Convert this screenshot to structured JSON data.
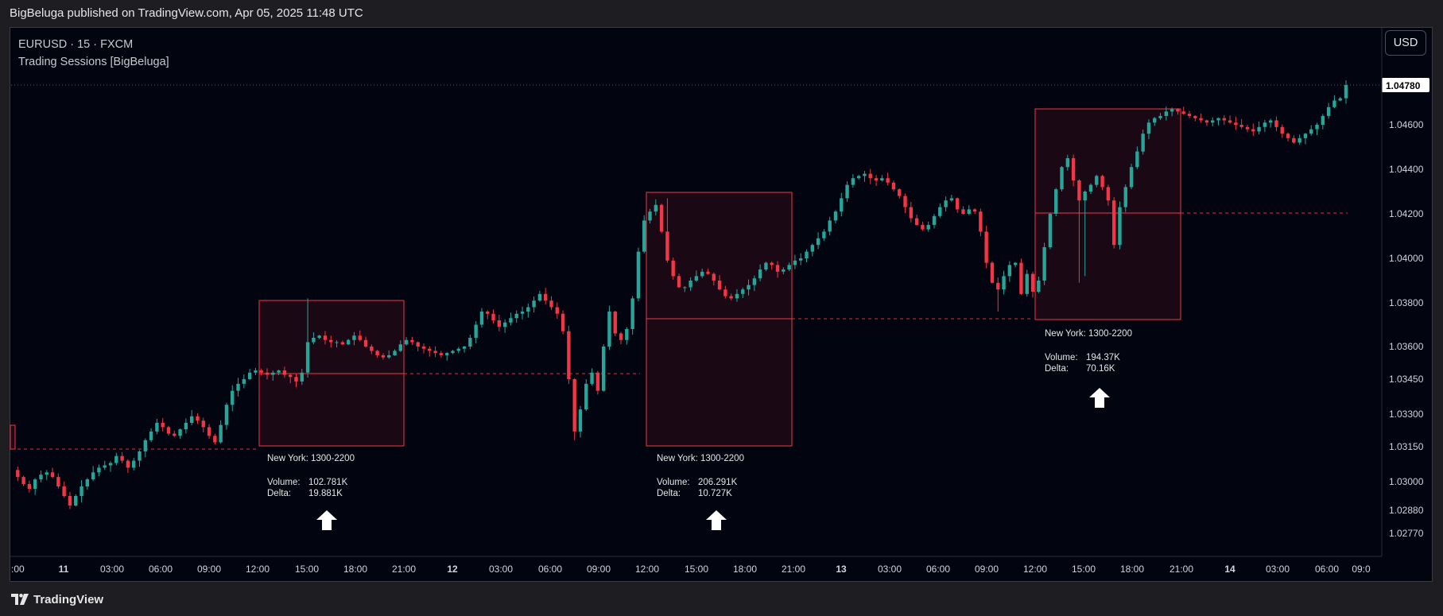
{
  "header": {
    "published": "BigBeluga published on TradingView.com, Apr 05, 2025 11:48 UTC"
  },
  "legend": {
    "symbol_line": "EURUSD · 15 · FXCM",
    "indicator": "Trading Sessions [BigBeluga]"
  },
  "currency_button": "USD",
  "footer": {
    "brand": "TradingView"
  },
  "colors": {
    "background": "#02040f",
    "up": "#26a69a",
    "down": "#f23645",
    "session_box": "#f23645",
    "text": "#d1d4dc",
    "price_tag_bg": "#ffffff"
  },
  "chart_data": {
    "type": "candlestick",
    "symbol": "EURUSD",
    "interval": "15",
    "source": "FXCM",
    "y_axis": {
      "ticks": [
        "1.04600",
        "1.04400",
        "1.04200",
        "1.04000",
        "1.03800",
        "1.03600",
        "1.03450",
        "1.03300",
        "1.03150",
        "1.03000",
        "1.02880",
        "1.02770"
      ],
      "last_price": "1.04780"
    },
    "x_axis": {
      "ticks": [
        ":00",
        "11",
        "03:00",
        "06:00",
        "09:00",
        "12:00",
        "15:00",
        "18:00",
        "21:00",
        "12",
        "03:00",
        "06:00",
        "09:00",
        "12:00",
        "15:00",
        "18:00",
        "21:00",
        "13",
        "03:00",
        "06:00",
        "09:00",
        "12:00",
        "15:00",
        "18:00",
        "21:00",
        "14",
        "03:00",
        "06:00",
        "09:0"
      ],
      "bold_ticks": [
        "11",
        "12",
        "13",
        "14"
      ]
    },
    "sessions": [
      {
        "name": "New York: 1300-2200",
        "volume_label": "Volume:",
        "volume": "102.781K",
        "delta_label": "Delta:",
        "delta": "19.881K",
        "arrow": "up"
      },
      {
        "name": "New York: 1300-2200",
        "volume_label": "Volume:",
        "volume": "206.291K",
        "delta_label": "Delta:",
        "delta": "10.727K",
        "arrow": "up"
      },
      {
        "name": "New York: 1300-2200",
        "volume_label": "Volume:",
        "volume": "194.37K",
        "delta_label": "Delta:",
        "delta": "70.16K",
        "arrow": "up"
      }
    ],
    "path": [
      1.0305,
      1.0302,
      1.0299,
      1.0297,
      1.0301,
      1.0303,
      1.0304,
      1.0302,
      1.0298,
      1.0294,
      1.029,
      1.0294,
      1.0298,
      1.0301,
      1.0304,
      1.0306,
      1.0307,
      1.0308,
      1.0311,
      1.0309,
      1.0306,
      1.0309,
      1.0313,
      1.0318,
      1.0322,
      1.0326,
      1.0324,
      1.0321,
      1.032,
      1.0323,
      1.0326,
      1.0329,
      1.0327,
      1.0324,
      1.032,
      1.0317,
      1.0325,
      1.0334,
      1.034,
      1.0343,
      1.0345,
      1.0348,
      1.0349,
      1.0348,
      1.0347,
      1.0348,
      1.0349,
      1.0347,
      1.0346,
      1.0344,
      1.0348,
      1.0362,
      1.0364,
      1.0365,
      1.0363,
      1.0362,
      1.0362,
      1.0361,
      1.0363,
      1.0365,
      1.0363,
      1.036,
      1.0358,
      1.0356,
      1.0355,
      1.0356,
      1.0358,
      1.0361,
      1.0363,
      1.0362,
      1.036,
      1.0359,
      1.0358,
      1.0357,
      1.0356,
      1.0357,
      1.0358,
      1.0359,
      1.036,
      1.0364,
      1.037,
      1.0376,
      1.0375,
      1.0372,
      1.0369,
      1.0371,
      1.0373,
      1.0375,
      1.0376,
      1.0378,
      1.0381,
      1.0384,
      1.0381,
      1.0378,
      1.0375,
      1.0367,
      1.0345,
      1.0322,
      1.0332,
      1.0343,
      1.0348,
      1.034,
      1.036,
      1.0376,
      1.0366,
      1.0363,
      1.0368,
      1.0382,
      1.0403,
      1.0417,
      1.0421,
      1.0424,
      1.0412,
      1.0399,
      1.0392,
      1.0387,
      1.0387,
      1.039,
      1.0392,
      1.0394,
      1.0393,
      1.039,
      1.0386,
      1.0383,
      1.0382,
      1.0384,
      1.0386,
      1.0388,
      1.0391,
      1.0395,
      1.0398,
      1.0397,
      1.0394,
      1.0395,
      1.0397,
      1.0399,
      1.04,
      1.0403,
      1.0406,
      1.0409,
      1.0412,
      1.0417,
      1.0421,
      1.0427,
      1.0433,
      1.0436,
      1.0437,
      1.0438,
      1.0436,
      1.0435,
      1.0436,
      1.0434,
      1.0431,
      1.0428,
      1.0423,
      1.0418,
      1.0415,
      1.0413,
      1.0415,
      1.0419,
      1.0423,
      1.0426,
      1.0427,
      1.0422,
      1.042,
      1.0422,
      1.0421,
      1.0412,
      1.0398,
      1.0389,
      1.0386,
      1.0392,
      1.0397,
      1.0398,
      1.0384,
      1.0393,
      1.0385,
      1.039,
      1.0405,
      1.042,
      1.0431,
      1.0441,
      1.0445,
      1.0435,
      1.0426,
      1.043,
      1.0433,
      1.0437,
      1.0432,
      1.0426,
      1.0406,
      1.0423,
      1.0432,
      1.0441,
      1.0448,
      1.0456,
      1.0461,
      1.0463,
      1.0464,
      1.0466,
      1.0467,
      1.0466,
      1.0465,
      1.0464,
      1.0463,
      1.0462,
      1.0461,
      1.0462,
      1.0463,
      1.0462,
      1.0461,
      1.046,
      1.0459,
      1.0458,
      1.0457,
      1.0459,
      1.0461,
      1.0462,
      1.0459,
      1.0456,
      1.0454,
      1.0452,
      1.0454,
      1.0456,
      1.0458,
      1.046,
      1.0464,
      1.0468,
      1.0471,
      1.0472,
      1.0478
    ]
  }
}
